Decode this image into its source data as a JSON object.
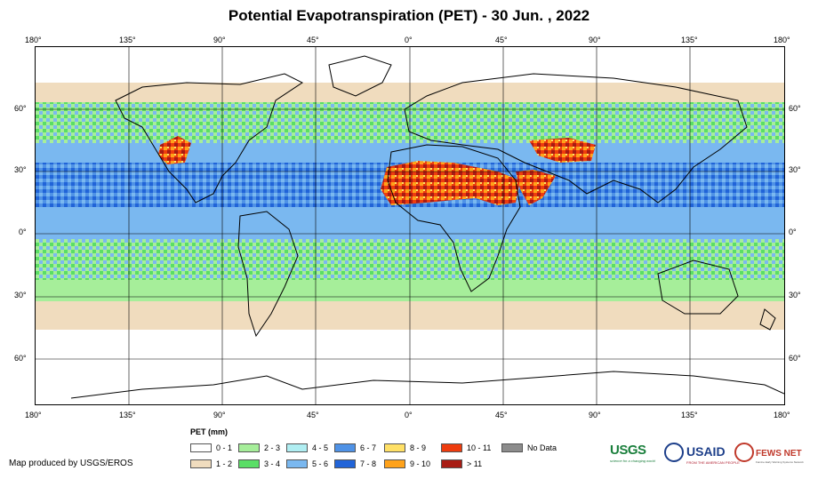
{
  "title": "Potential Evapotranspiration (PET) - 30 Jun. , 2022",
  "lon_ticks": [
    "180°",
    "135°",
    "90°",
    "45°",
    "0°",
    "45°",
    "90°",
    "135°",
    "180°"
  ],
  "lat_ticks": [
    "60°",
    "30°",
    "0°",
    "30°",
    "60°"
  ],
  "legend": {
    "title": "PET (mm)",
    "items": [
      {
        "label": "0 - 1",
        "color": "#ffffff"
      },
      {
        "label": "1 - 2",
        "color": "#f0dcbe"
      },
      {
        "label": "2 - 3",
        "color": "#a6ee9a"
      },
      {
        "label": "3 - 4",
        "color": "#5ade66"
      },
      {
        "label": "4 - 5",
        "color": "#b0eef2"
      },
      {
        "label": "5 - 6",
        "color": "#7ab8f0"
      },
      {
        "label": "6 - 7",
        "color": "#4f92e6"
      },
      {
        "label": "7 - 8",
        "color": "#2164d8"
      },
      {
        "label": "8 - 9",
        "color": "#ffe066"
      },
      {
        "label": "9 - 10",
        "color": "#ffa21a"
      },
      {
        "label": "10 - 11",
        "color": "#ee3c0e"
      },
      {
        "label": "> 11",
        "color": "#a81c14"
      },
      {
        "label": "No Data",
        "color": "#8c8c8c"
      }
    ]
  },
  "credit": "Map produced by USGS/EROS",
  "logos": {
    "usgs": "USGS",
    "usgs_tagline": "science for a changing world",
    "usaid": "USAID",
    "usaid_tagline": "FROM THE AMERICAN PEOPLE",
    "fewsnet": "FEWS NET",
    "fewsnet_tagline": "Famine Early Warning Systems Network"
  }
}
